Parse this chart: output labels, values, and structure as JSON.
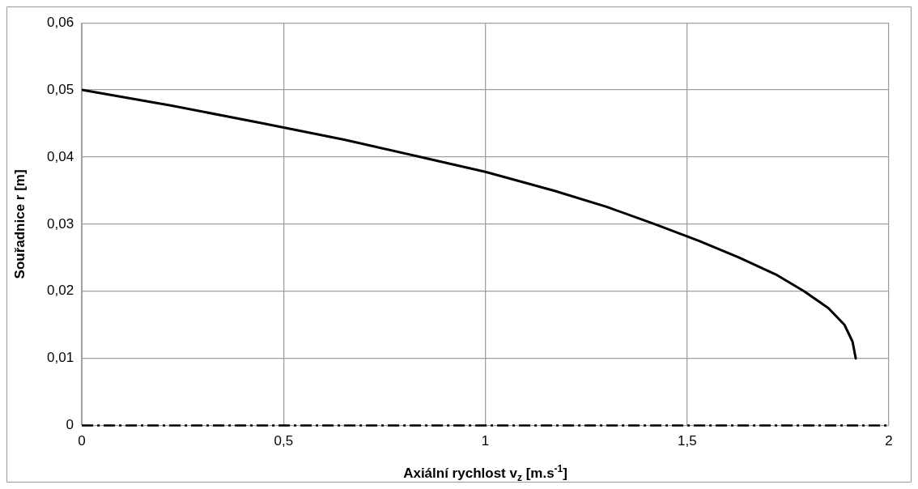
{
  "chart_data": {
    "type": "line",
    "xlabel": "Axiální rychlost v$_{z}$ [m.s$^{-1}$]",
    "ylabel": "Souřadnice r [m]",
    "xlim": [
      0,
      2
    ],
    "xticks": [
      0,
      {
        "value": 0.5,
        "label": "0,5"
      },
      1,
      {
        "value": 1.5,
        "label": "1,5"
      },
      2
    ],
    "ylim": [
      0,
      0.06
    ],
    "yticks": [
      0,
      {
        "value": 0.01,
        "label": "0,01"
      },
      {
        "value": 0.02,
        "label": "0,02"
      },
      {
        "value": 0.03,
        "label": "0,03"
      },
      {
        "value": 0.04,
        "label": "0,04"
      },
      {
        "value": 0.05,
        "label": "0,05"
      },
      {
        "value": 0.06,
        "label": "0,06"
      }
    ],
    "grid": true,
    "marker": "none",
    "line_style": "solid",
    "series": [
      {
        "color": "#000000",
        "x": [
          0,
          0.22,
          0.45,
          0.65,
          0.84,
          1.0,
          1.17,
          1.3,
          1.42,
          1.53,
          1.63,
          1.72,
          1.79,
          1.85,
          1.89,
          1.91,
          1.918
        ],
        "values": [
          0.05,
          0.0477,
          0.045,
          0.0426,
          0.04,
          0.0378,
          0.035,
          0.0326,
          0.03,
          0.0275,
          0.025,
          0.0225,
          0.02,
          0.0175,
          0.015,
          0.0125,
          0.01
        ]
      }
    ],
    "ref_lines": [
      {
        "axis": "y",
        "value": 0,
        "color": "#000000",
        "line_style": "dashed"
      }
    ]
  }
}
